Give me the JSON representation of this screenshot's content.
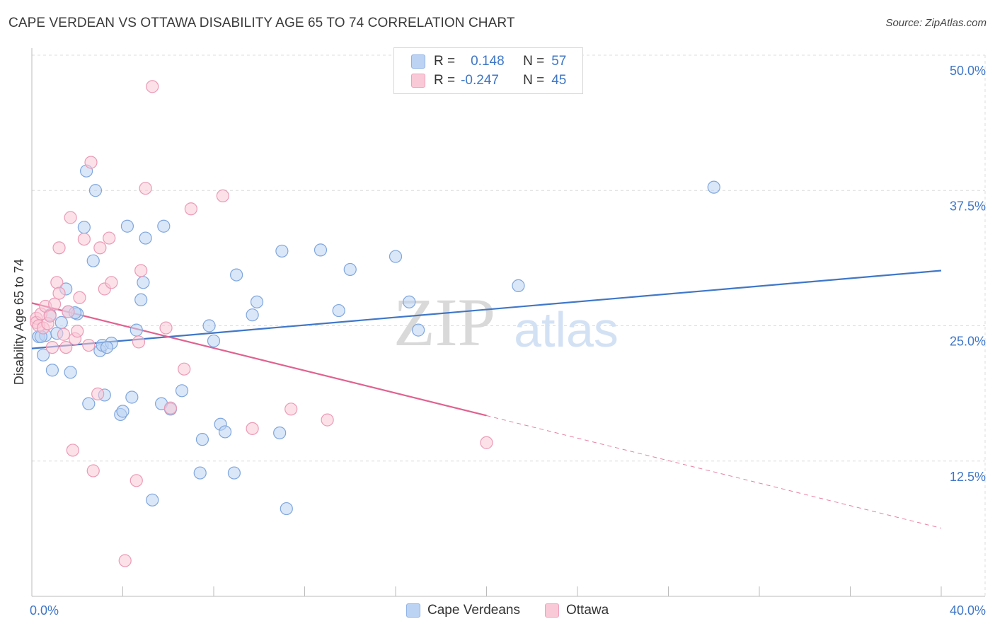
{
  "title": "CAPE VERDEAN VS OTTAWA DISABILITY AGE 65 TO 74 CORRELATION CHART",
  "source": "Source: ZipAtlas.com",
  "legend": {
    "rows": [
      {
        "r_label": "R =",
        "r_value": "0.148",
        "n_label": "N =",
        "n_value": "57"
      },
      {
        "r_label": "R =",
        "r_value": "-0.247",
        "n_label": "N =",
        "n_value": "45"
      }
    ]
  },
  "series_labels": [
    "Cape Verdeans",
    "Ottawa"
  ],
  "colors": {
    "blue": "#3f77c8",
    "blue_fill": "#bcd3f3",
    "pink": "#e0628f",
    "pink_fill": "#f9c9d7",
    "tick_label": "#3f77c8"
  },
  "chart_data": {
    "type": "scatter",
    "title": "CAPE VERDEAN VS OTTAWA DISABILITY AGE 65 TO 74 CORRELATION CHART",
    "xlabel": "",
    "ylabel": "Disability Age 65 to 74",
    "xlim": [
      0,
      40
    ],
    "ylim": [
      0,
      50
    ],
    "x_tick_labels": [
      "0.0%",
      "40.0%"
    ],
    "y_ticks": [
      12.5,
      25.0,
      37.5,
      50.0
    ],
    "y_tick_labels": [
      "12.5%",
      "25.0%",
      "37.5%",
      "50.0%"
    ],
    "watermark": {
      "part1": "ZIP",
      "part2": "atlas"
    },
    "series": [
      {
        "name": "Cape Verdeans",
        "color": "#3f77c8",
        "points": [
          [
            0.3,
            24.0
          ],
          [
            0.5,
            22.3
          ],
          [
            0.6,
            24.1
          ],
          [
            0.8,
            26.0
          ],
          [
            0.9,
            20.9
          ],
          [
            1.1,
            24.3
          ],
          [
            1.3,
            25.3
          ],
          [
            1.5,
            28.4
          ],
          [
            1.6,
            26.3
          ],
          [
            1.7,
            20.7
          ],
          [
            2.0,
            26.1
          ],
          [
            2.3,
            34.1
          ],
          [
            2.4,
            39.3
          ],
          [
            2.5,
            17.8
          ],
          [
            2.7,
            31.0
          ],
          [
            2.8,
            37.5
          ],
          [
            3.0,
            22.7
          ],
          [
            3.2,
            18.6
          ],
          [
            3.1,
            23.2
          ],
          [
            3.5,
            23.4
          ],
          [
            3.9,
            16.8
          ],
          [
            4.0,
            17.1
          ],
          [
            4.2,
            34.2
          ],
          [
            4.4,
            18.4
          ],
          [
            4.6,
            24.6
          ],
          [
            4.8,
            27.4
          ],
          [
            4.9,
            29.0
          ],
          [
            5.0,
            33.1
          ],
          [
            5.3,
            8.9
          ],
          [
            5.7,
            17.8
          ],
          [
            5.8,
            34.2
          ],
          [
            6.1,
            17.3
          ],
          [
            6.6,
            19.0
          ],
          [
            7.5,
            14.5
          ],
          [
            7.4,
            11.4
          ],
          [
            7.8,
            25.0
          ],
          [
            8.0,
            23.6
          ],
          [
            8.3,
            15.9
          ],
          [
            8.5,
            15.2
          ],
          [
            9.0,
            29.7
          ],
          [
            8.9,
            11.4
          ],
          [
            9.7,
            26.0
          ],
          [
            9.9,
            27.2
          ],
          [
            10.9,
            15.1
          ],
          [
            11.0,
            31.9
          ],
          [
            11.2,
            8.1
          ],
          [
            12.7,
            32.0
          ],
          [
            13.5,
            26.4
          ],
          [
            14.0,
            30.2
          ],
          [
            16.0,
            31.4
          ],
          [
            16.6,
            27.2
          ],
          [
            17.0,
            24.6
          ],
          [
            21.4,
            28.7
          ],
          [
            30.0,
            37.8
          ],
          [
            0.4,
            24.0
          ],
          [
            1.9,
            26.2
          ],
          [
            3.3,
            23.0
          ]
        ]
      },
      {
        "name": "Ottawa",
        "color": "#e0628f",
        "points": [
          [
            0.2,
            25.7
          ],
          [
            0.2,
            25.3
          ],
          [
            0.3,
            25.0
          ],
          [
            0.4,
            26.1
          ],
          [
            0.5,
            24.8
          ],
          [
            0.6,
            26.8
          ],
          [
            0.7,
            25.2
          ],
          [
            0.8,
            25.9
          ],
          [
            0.9,
            23.0
          ],
          [
            1.0,
            27.0
          ],
          [
            1.1,
            29.0
          ],
          [
            1.2,
            28.0
          ],
          [
            1.2,
            32.2
          ],
          [
            1.4,
            24.2
          ],
          [
            1.5,
            23.0
          ],
          [
            1.6,
            26.3
          ],
          [
            1.7,
            35.0
          ],
          [
            1.8,
            13.5
          ],
          [
            1.9,
            23.8
          ],
          [
            2.0,
            24.5
          ],
          [
            2.1,
            27.6
          ],
          [
            2.3,
            33.0
          ],
          [
            2.5,
            23.2
          ],
          [
            2.6,
            40.1
          ],
          [
            2.7,
            11.6
          ],
          [
            2.9,
            18.7
          ],
          [
            3.0,
            32.2
          ],
          [
            3.2,
            28.4
          ],
          [
            3.4,
            33.1
          ],
          [
            3.5,
            29.0
          ],
          [
            4.1,
            3.3
          ],
          [
            4.6,
            10.7
          ],
          [
            4.7,
            23.5
          ],
          [
            4.8,
            30.1
          ],
          [
            5.0,
            37.7
          ],
          [
            5.3,
            47.1
          ],
          [
            5.9,
            24.8
          ],
          [
            6.1,
            17.4
          ],
          [
            6.7,
            21.0
          ],
          [
            7.0,
            35.8
          ],
          [
            8.4,
            37.0
          ],
          [
            9.7,
            15.5
          ],
          [
            11.4,
            17.3
          ],
          [
            13.0,
            16.3
          ],
          [
            20.0,
            14.2
          ]
        ]
      }
    ],
    "trendlines": [
      {
        "series": "Cape Verdeans",
        "x": [
          0,
          40
        ],
        "y": [
          22.9,
          30.1
        ],
        "style": "solid"
      },
      {
        "series": "Ottawa",
        "x": [
          0,
          20
        ],
        "y": [
          27.1,
          16.7
        ],
        "style": "solid"
      },
      {
        "series": "Ottawa",
        "x": [
          20,
          40
        ],
        "y": [
          16.7,
          6.3
        ],
        "style": "dashed"
      }
    ]
  }
}
